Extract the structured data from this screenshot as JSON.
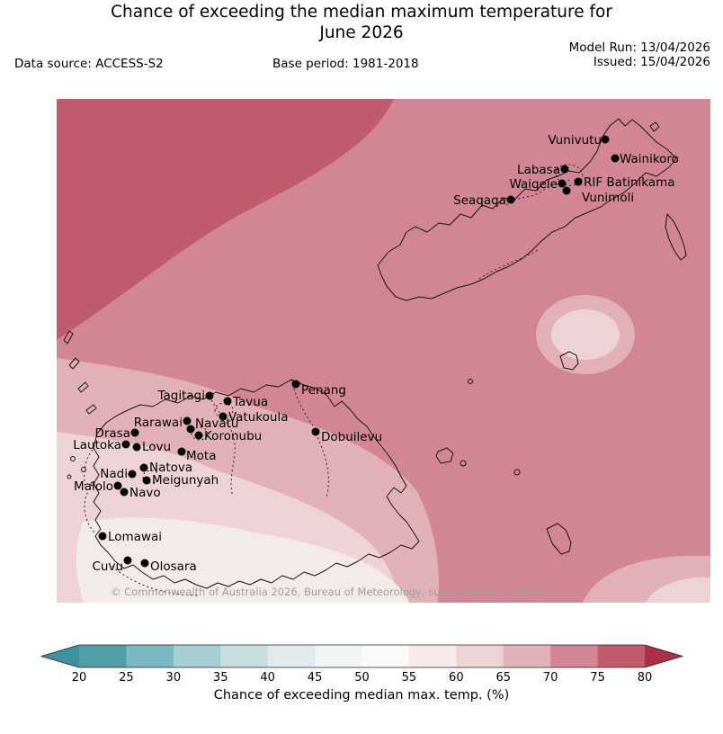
{
  "header": {
    "title_line1": "Chance of exceeding the median maximum temperature for",
    "title_line2": "June 2026",
    "data_source": "Data source: ACCESS-S2",
    "base_period": "Base period: 1981-2018",
    "model_run": "Model Run: 13/04/2026",
    "issued": "Issued: 15/04/2026"
  },
  "map": {
    "copyright": "© Commonwealth of Australia 2026, Bureau of Meteorology, supported by COSPPac",
    "stations": [
      {
        "name": "Vunivutu",
        "dot": [
          610,
          45
        ],
        "label": [
          606,
          50
        ],
        "anchor": "end"
      },
      {
        "name": "Wainikoro",
        "dot": [
          621,
          66
        ],
        "label": [
          626,
          71
        ],
        "anchor": "start"
      },
      {
        "name": "Labasa",
        "dot": [
          565,
          78
        ],
        "label": [
          560,
          83
        ],
        "anchor": "end"
      },
      {
        "name": "Waiqele",
        "dot": [
          562,
          94
        ],
        "label": [
          557,
          99
        ],
        "anchor": "end"
      },
      {
        "name": "RIF Batinikama",
        "dot": [
          580,
          92
        ],
        "label": [
          586,
          97
        ],
        "anchor": "start"
      },
      {
        "name": "Vunimoli",
        "dot": [
          567,
          102
        ],
        "label": [
          584,
          114
        ],
        "anchor": "start"
      },
      {
        "name": "Seaqaqa",
        "dot": [
          505,
          112
        ],
        "label": [
          500,
          117
        ],
        "anchor": "end"
      },
      {
        "name": "Penang",
        "dot": [
          266,
          317
        ],
        "label": [
          272,
          328
        ],
        "anchor": "start"
      },
      {
        "name": "Tagitagi",
        "dot": [
          170,
          330
        ],
        "label": [
          165,
          334
        ],
        "anchor": "end"
      },
      {
        "name": "Tavua",
        "dot": [
          190,
          336
        ],
        "label": [
          196,
          341
        ],
        "anchor": "start"
      },
      {
        "name": "Vatukoula",
        "dot": [
          185,
          353
        ],
        "label": [
          191,
          358
        ],
        "anchor": "start"
      },
      {
        "name": "Rarawai",
        "dot": [
          145,
          358
        ],
        "label": [
          140,
          364
        ],
        "anchor": "end"
      },
      {
        "name": "Navatu",
        "dot": [
          149,
          367
        ],
        "label": [
          154,
          365
        ],
        "anchor": "start"
      },
      {
        "name": "Drasa",
        "dot": [
          87,
          371
        ],
        "label": [
          82,
          376
        ],
        "anchor": "end"
      },
      {
        "name": "Koronubu",
        "dot": [
          158,
          374
        ],
        "label": [
          164,
          379
        ],
        "anchor": "start"
      },
      {
        "name": "Lautoka",
        "dot": [
          77,
          384
        ],
        "label": [
          72,
          389
        ],
        "anchor": "end"
      },
      {
        "name": "Lovu",
        "dot": [
          89,
          387
        ],
        "label": [
          95,
          391
        ],
        "anchor": "start"
      },
      {
        "name": "Mota",
        "dot": [
          139,
          392
        ],
        "label": [
          144,
          401
        ],
        "anchor": "start"
      },
      {
        "name": "Dobuilevu",
        "dot": [
          288,
          370
        ],
        "label": [
          294,
          380
        ],
        "anchor": "start"
      },
      {
        "name": "Natova",
        "dot": [
          97,
          410
        ],
        "label": [
          103,
          414
        ],
        "anchor": "start"
      },
      {
        "name": "Nadi",
        "dot": [
          84,
          417
        ],
        "label": [
          79,
          421
        ],
        "anchor": "end"
      },
      {
        "name": "Meigunyah",
        "dot": [
          100,
          424
        ],
        "label": [
          106,
          428
        ],
        "anchor": "start"
      },
      {
        "name": "Malolo",
        "dot": [
          68,
          430
        ],
        "label": [
          63,
          435
        ],
        "anchor": "end"
      },
      {
        "name": "Navo",
        "dot": [
          75,
          437
        ],
        "label": [
          81,
          442
        ],
        "anchor": "start"
      },
      {
        "name": "Lomawai",
        "dot": [
          51,
          486
        ],
        "label": [
          57,
          491
        ],
        "anchor": "start"
      },
      {
        "name": "Cuvu",
        "dot": [
          79,
          513
        ],
        "label": [
          74,
          524
        ],
        "anchor": "end"
      },
      {
        "name": "Olosara",
        "dot": [
          98,
          516
        ],
        "label": [
          104,
          524
        ],
        "anchor": "start"
      }
    ]
  },
  "map_colors": {
    "band_75_80": "#c05b6b",
    "band_70_75": "#d28693",
    "band_65_70": "#e2b1b8",
    "band_60_65": "#eed3d6",
    "band_55_60": "#f3ebe8"
  },
  "legend": {
    "ticks": [
      "20",
      "25",
      "30",
      "35",
      "40",
      "45",
      "50",
      "55",
      "60",
      "65",
      "70",
      "75",
      "80"
    ],
    "segment_colors": [
      "#4f9ea7",
      "#7ab7be",
      "#a5cdd2",
      "#c8dee1",
      "#e1ebed",
      "#f0f4f4",
      "#fbfafa",
      "#f5e9ea",
      "#eed3d6",
      "#e2b1b8",
      "#d28693",
      "#c05b6b"
    ],
    "arrow_left_color": "#3d939d",
    "arrow_right_color": "#ac2f48",
    "label": "Chance of exceeding median max. temp. (%)"
  }
}
